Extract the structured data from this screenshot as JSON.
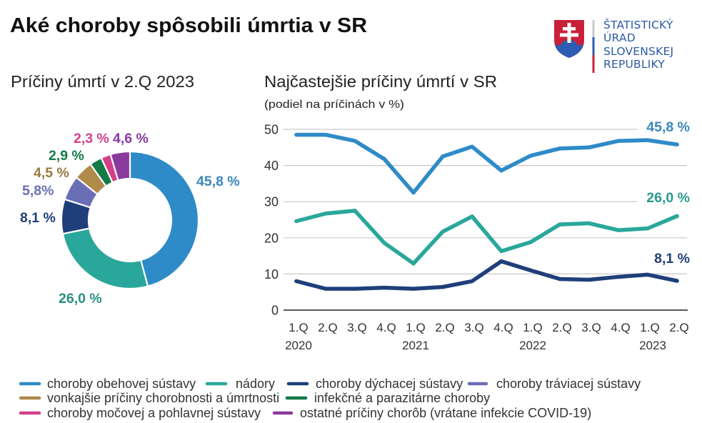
{
  "header": {
    "title": "Aké choroby spôsobili úmrtia v SR"
  },
  "logo": {
    "emblem": "slovak-coat-of-arms-icon",
    "lines": [
      "ŠTATISTICKÝ",
      "ÚRAD",
      "SLOVENSKEJ",
      "REPUBLIKY"
    ],
    "text_color": "#2b5aa6",
    "emblem_colors": {
      "red": "#c8213a",
      "blue": "#2c5db3",
      "white": "#ffffff",
      "gray": "#c9c9c9"
    }
  },
  "chart_data": [
    {
      "type": "pie",
      "variant": "donut",
      "title": "Príčiny úmrtí v 2.Q 2023",
      "start": "top",
      "direction": "clockwise",
      "categories": [
        "choroby obehovej sústavy",
        "nádory",
        "choroby dýchacej sústavy",
        "choroby tráviacej sústavy",
        "vonkajšie príčiny chorobnosti a úmrtnosti",
        "infekčné a parazitárne choroby",
        "choroby močovej a pohlavnej sústavy",
        "ostatné príčiny chorôb (vrátane infekcie COVID-19)"
      ],
      "values": [
        45.8,
        26.0,
        8.1,
        5.8,
        4.5,
        2.9,
        2.3,
        4.6
      ],
      "data_labels": [
        "45,8 %",
        "26,0 %",
        "8,1 %",
        "5,8%",
        "4,5 %",
        "2,9 %",
        "2,3 %",
        "4,6 %"
      ],
      "colors": [
        "#2e8bc8",
        "#2aa79b",
        "#1f3f7a",
        "#6a6eb5",
        "#b08a4a",
        "#147a48",
        "#d43f8a",
        "#8b3a9e"
      ],
      "label_colors": [
        "#3a87bd",
        "#2a8f82",
        "#1f3f7a",
        "#6a6eb5",
        "#9a7a40",
        "#147a48",
        "#d43f8a",
        "#8b3a9e"
      ]
    },
    {
      "type": "line",
      "title": "Najčastejšie príčiny úmrtí v SR",
      "subtitle": "(podiel na príčinách v %)",
      "xlabel": "",
      "ylabel": "",
      "x": [
        "1.Q",
        "2.Q",
        "3.Q",
        "4.Q",
        "1.Q",
        "2.Q",
        "3.Q",
        "4.Q",
        "1.Q",
        "2.Q",
        "3.Q",
        "4.Q",
        "1.Q",
        "2.Q"
      ],
      "x_groups": [
        {
          "label": "2020",
          "start_index": 0
        },
        {
          "label": "2021",
          "start_index": 4
        },
        {
          "label": "2022",
          "start_index": 8
        },
        {
          "label": "2023",
          "start_index": 12
        }
      ],
      "ylim": [
        0,
        50
      ],
      "yticks": [
        0,
        10,
        20,
        30,
        40,
        50
      ],
      "grid": true,
      "series": [
        {
          "name": "choroby obehovej sústavy",
          "color": "#2e8bc8",
          "values": [
            48.5,
            48.5,
            46.8,
            41.8,
            32.5,
            42.5,
            45.2,
            38.6,
            42.7,
            44.7,
            45.0,
            46.8,
            47.0,
            45.8
          ],
          "end_label": "45,8 %",
          "end_label_color": "#3a87bd"
        },
        {
          "name": "nádory",
          "color": "#2aa79b",
          "values": [
            24.6,
            26.7,
            27.5,
            18.6,
            12.9,
            21.7,
            25.9,
            16.3,
            18.8,
            23.7,
            24.0,
            22.1,
            22.6,
            26.0
          ],
          "end_label": "26,0 %",
          "end_label_color": "#2a9a8d"
        },
        {
          "name": "choroby dýchacej sústavy",
          "color": "#1f3f7a",
          "values": [
            8.0,
            5.9,
            5.9,
            6.2,
            5.9,
            6.4,
            8.0,
            13.5,
            11.0,
            8.6,
            8.4,
            9.2,
            9.8,
            8.1
          ],
          "end_label": "8,1 %",
          "end_label_color": "#1f3f7a"
        }
      ]
    }
  ],
  "legend": {
    "placement": "bottom",
    "items": [
      {
        "label": "choroby obehovej sústavy",
        "color": "#2e8bc8"
      },
      {
        "label": "nádory",
        "color": "#2aa79b"
      },
      {
        "label": "choroby dýchacej sústavy",
        "color": "#1f3f7a"
      },
      {
        "label": "choroby tráviacej sústavy",
        "color": "#6a6eb5"
      },
      {
        "label": "vonkajšie príčiny chorobnosti a úmrtnosti",
        "color": "#b08a4a"
      },
      {
        "label": "infekčné a parazitárne choroby",
        "color": "#147a48"
      },
      {
        "label": "choroby močovej a pohlavnej sústavy",
        "color": "#d43f8a"
      },
      {
        "label": "ostatné príčiny chorôb (vrátane infekcie COVID-19)",
        "color": "#8b3a9e"
      }
    ]
  }
}
